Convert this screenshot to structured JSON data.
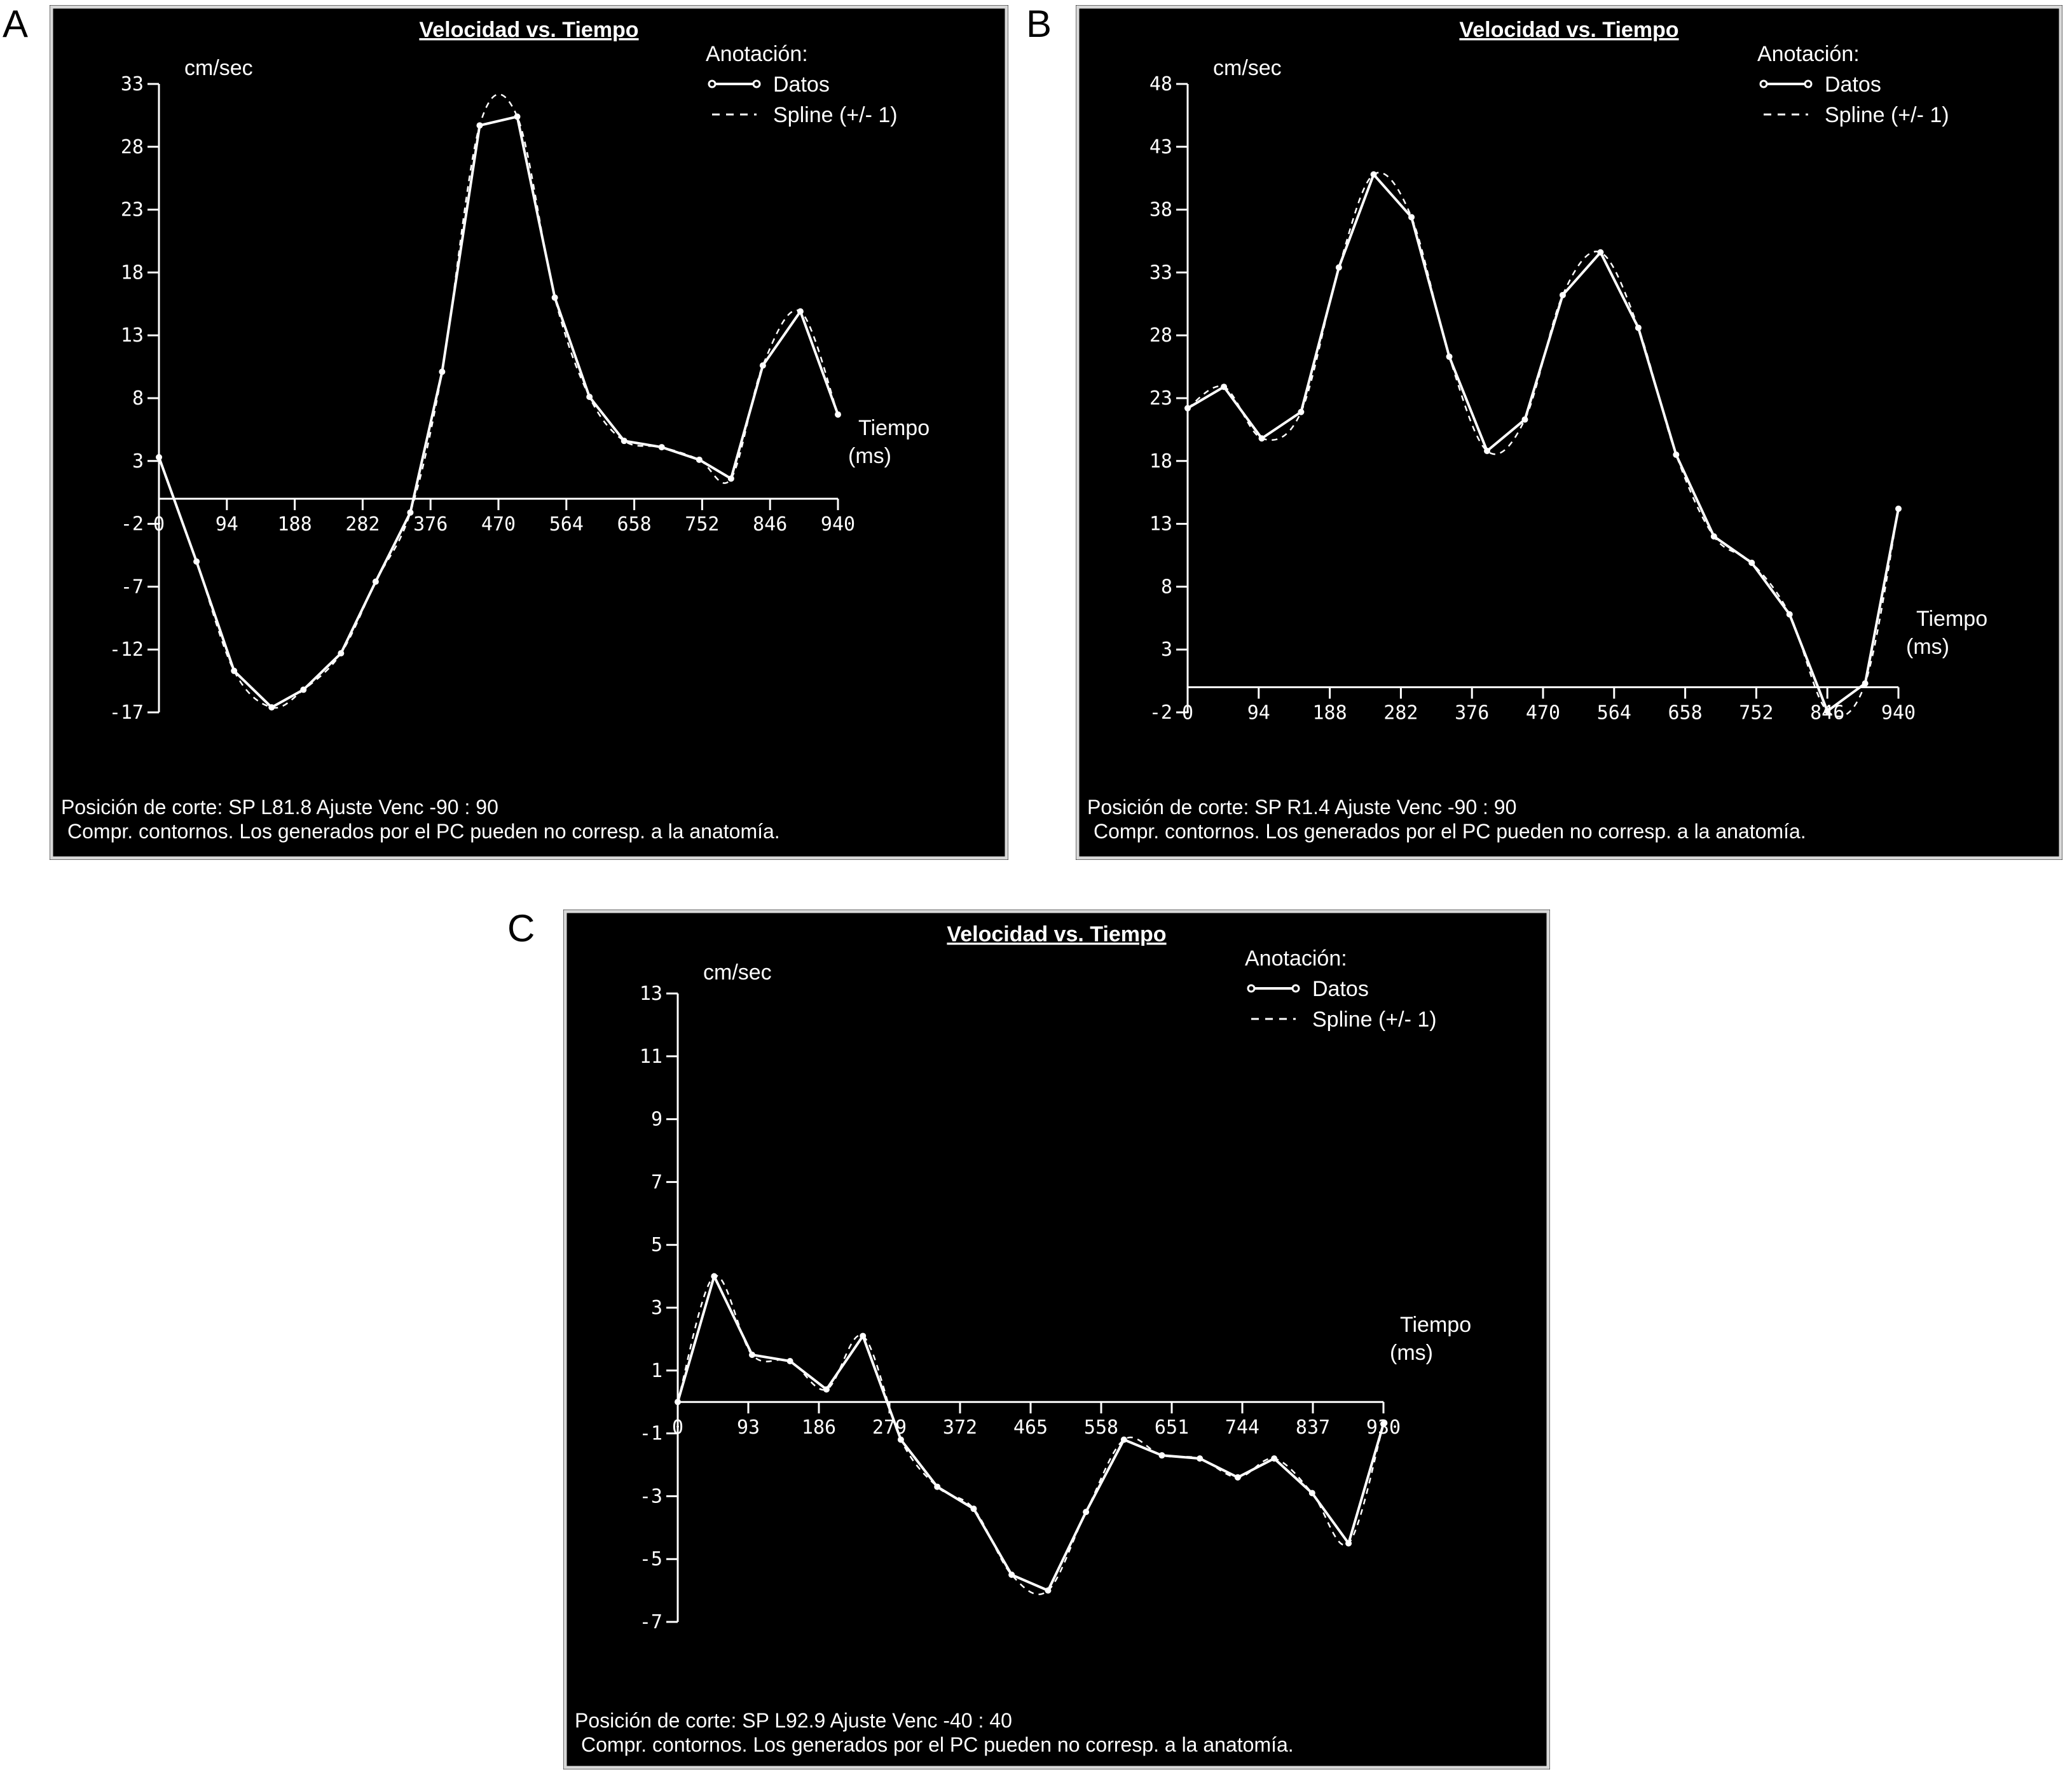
{
  "panels_letters": [
    "A",
    "B",
    "C"
  ],
  "common": {
    "title": "Velocidad vs. Tiempo",
    "legend_title": "Anotación:",
    "legend_datos": "Datos",
    "legend_spline": "Spline (+/- 1)",
    "ylabel": "cm/sec",
    "xlabel_1": "Tiempo",
    "xlabel_2": "(ms)",
    "footer_2": "Compr. contornos. Los generados por el PC pueden no corresp. a la anatomía."
  },
  "chart_data": [
    {
      "type": "line",
      "panel": "A",
      "title": "Velocidad vs. Tiempo",
      "ylabel": "cm/sec",
      "xlabel": "Tiempo (ms)",
      "footer_1": "Posición de corte: SP  L81.8     Ajuste Venc -90 : 90",
      "xlim": [
        0,
        940
      ],
      "ylim": [
        -17,
        33
      ],
      "x_ticks": [
        "0",
        "94",
        "188",
        "282",
        "376",
        "470",
        "564",
        "658",
        "752",
        "846",
        "940"
      ],
      "y_ticks": [
        "33",
        "28",
        "23",
        "18",
        "13",
        "8",
        "3",
        "-2",
        "-7",
        "-12",
        "-17"
      ],
      "x_tick_values": [
        0,
        94,
        188,
        282,
        376,
        470,
        564,
        658,
        752,
        846,
        940
      ],
      "y_tick_values": [
        33,
        28,
        23,
        18,
        13,
        8,
        3,
        -2,
        -7,
        -12,
        -17
      ],
      "series": [
        {
          "name": "Datos",
          "x": [
            0,
            52,
            104,
            156,
            200,
            252,
            300,
            348,
            392,
            444,
            496,
            548,
            596,
            644,
            696,
            748,
            792,
            836,
            888,
            940
          ],
          "y": [
            3.3,
            -5,
            -13.7,
            -16.6,
            -15.2,
            -12.3,
            -6.6,
            -1.1,
            10.1,
            29.7,
            30.4,
            16.0,
            8.1,
            4.6,
            4.1,
            3.1,
            1.6,
            10.6,
            14.9,
            6.7
          ]
        }
      ]
    },
    {
      "type": "line",
      "panel": "B",
      "title": "Velocidad vs. Tiempo",
      "ylabel": "cm/sec",
      "xlabel": "Tiempo (ms)",
      "footer_1": "Posición de corte: SP  R1.4     Ajuste Venc -90 : 90",
      "xlim": [
        0,
        940
      ],
      "ylim": [
        -2,
        48
      ],
      "x_ticks": [
        "0",
        "94",
        "188",
        "282",
        "376",
        "470",
        "564",
        "658",
        "752",
        "846",
        "940"
      ],
      "y_ticks": [
        "48",
        "43",
        "38",
        "33",
        "28",
        "23",
        "18",
        "13",
        "8",
        "3",
        "-2"
      ],
      "x_tick_values": [
        0,
        94,
        188,
        282,
        376,
        470,
        564,
        658,
        752,
        846,
        940
      ],
      "y_tick_values": [
        48,
        43,
        38,
        33,
        28,
        23,
        18,
        13,
        8,
        3,
        -2
      ],
      "series": [
        {
          "name": "Datos",
          "x": [
            0,
            48,
            98,
            150,
            200,
            246,
            296,
            346,
            396,
            446,
            496,
            546,
            596,
            646,
            696,
            746,
            796,
            846,
            896,
            940
          ],
          "y": [
            22.2,
            23.9,
            19.8,
            21.9,
            33.4,
            40.8,
            37.4,
            26.3,
            18.8,
            21.3,
            31.2,
            34.6,
            28.6,
            18.5,
            12.0,
            9.9,
            5.8,
            -1.9,
            0.3,
            14.2
          ]
        }
      ]
    },
    {
      "type": "line",
      "panel": "C",
      "title": "Velocidad vs. Tiempo",
      "ylabel": "cm/sec",
      "xlabel": "Tiempo (ms)",
      "footer_1": "Posición de corte: SP  L92.9     Ajuste Venc -40 : 40",
      "xlim": [
        0,
        930
      ],
      "ylim": [
        -7,
        13
      ],
      "x_ticks": [
        "0",
        "93",
        "186",
        "279",
        "372",
        "465",
        "558",
        "651",
        "744",
        "837",
        "930"
      ],
      "y_ticks": [
        "13",
        "11",
        "9",
        "7",
        "5",
        "3",
        "1",
        "-1",
        "-3",
        "-5",
        "-7"
      ],
      "x_tick_values": [
        0,
        93,
        186,
        279,
        372,
        465,
        558,
        651,
        744,
        837,
        930
      ],
      "y_tick_values": [
        13,
        11,
        9,
        7,
        5,
        3,
        1,
        -1,
        -3,
        -5,
        -7
      ],
      "series": [
        {
          "name": "Datos",
          "x": [
            0,
            48,
            98,
            148,
            196,
            244,
            294,
            342,
            390,
            440,
            488,
            538,
            588,
            638,
            688,
            738,
            786,
            836,
            884,
            930
          ],
          "y": [
            0.0,
            4.0,
            1.5,
            1.3,
            0.4,
            2.1,
            -1.2,
            -2.7,
            -3.4,
            -5.5,
            -6.0,
            -3.5,
            -1.2,
            -1.7,
            -1.8,
            -2.4,
            -1.8,
            -2.9,
            -4.5,
            -0.7
          ]
        }
      ]
    }
  ]
}
